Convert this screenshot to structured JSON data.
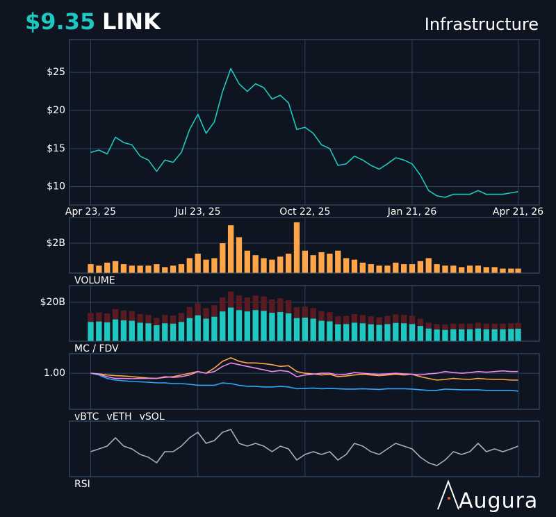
{
  "header": {
    "price": "$9.35",
    "symbol": "LINK",
    "sector": "Infrastructure"
  },
  "brand": "Augura",
  "chart_data": [
    {
      "type": "line",
      "x": [
        "2025-04-23",
        "2025-04-30",
        "2025-05-07",
        "2025-05-14",
        "2025-05-21",
        "2025-05-28",
        "2025-06-04",
        "2025-06-11",
        "2025-06-18",
        "2025-06-25",
        "2025-07-02",
        "2025-07-09",
        "2025-07-16",
        "2025-07-23",
        "2025-07-30",
        "2025-08-06",
        "2025-08-13",
        "2025-08-20",
        "2025-08-27",
        "2025-09-03",
        "2025-09-10",
        "2025-09-17",
        "2025-09-24",
        "2025-10-01",
        "2025-10-08",
        "2025-10-15",
        "2025-10-22",
        "2025-10-29",
        "2025-11-05",
        "2025-11-12",
        "2025-11-19",
        "2025-11-26",
        "2025-12-03",
        "2025-12-10",
        "2025-12-17",
        "2025-12-24",
        "2025-12-31",
        "2026-01-07",
        "2026-01-14",
        "2026-01-21",
        "2026-01-28",
        "2026-02-04",
        "2026-02-11",
        "2026-02-18",
        "2026-02-25",
        "2026-03-04",
        "2026-03-11",
        "2026-03-18",
        "2026-03-25",
        "2026-04-01",
        "2026-04-08",
        "2026-04-15",
        "2026-04-21"
      ],
      "series": [
        {
          "color": "#1ec8c0",
          "values": [
            14.5,
            14.8,
            14.3,
            16.5,
            15.8,
            15.5,
            14.0,
            13.5,
            12.0,
            13.5,
            13.2,
            14.5,
            17.5,
            19.5,
            17.0,
            18.5,
            22.5,
            25.5,
            23.5,
            22.5,
            23.5,
            23.0,
            21.5,
            22.0,
            21.0,
            17.5,
            17.8,
            17.0,
            15.5,
            15.0,
            12.8,
            13.0,
            14.0,
            13.5,
            12.8,
            12.3,
            13.0,
            13.8,
            13.5,
            13.0,
            11.5,
            9.5,
            8.8,
            8.6,
            9.0,
            9.0,
            9.0,
            9.5,
            9.0,
            9.0,
            9.0,
            9.2,
            9.35
          ]
        }
      ],
      "xlim": [
        "2025-04-05",
        "2026-05-09"
      ],
      "xticks": [
        {
          "value": "2025-04-23",
          "label": "Apr 23, 25"
        },
        {
          "value": "2025-07-23",
          "label": "Jul 23, 25"
        },
        {
          "value": "2025-10-22",
          "label": "Oct 22, 25"
        },
        {
          "value": "2026-01-21",
          "label": "Jan 21, 26"
        },
        {
          "value": "2026-04-21",
          "label": "Apr 21, 26"
        }
      ],
      "ylim": [
        7.6,
        29.3
      ],
      "yticks": [
        {
          "value": 10,
          "label": "$10"
        },
        {
          "value": 15,
          "label": "$15"
        },
        {
          "value": 20,
          "label": "$20"
        },
        {
          "value": 25,
          "label": "$25"
        }
      ],
      "grid": true
    },
    {
      "type": "bar",
      "label": "VOLUME",
      "color": "#ffa54a",
      "values": [
        0.6,
        0.5,
        0.7,
        0.8,
        0.6,
        0.5,
        0.5,
        0.5,
        0.6,
        0.4,
        0.5,
        0.6,
        1.0,
        1.3,
        0.9,
        1.0,
        2.0,
        3.2,
        2.4,
        1.5,
        1.2,
        1.0,
        0.9,
        1.1,
        1.3,
        3.4,
        1.5,
        1.2,
        1.4,
        1.3,
        1.5,
        1.0,
        0.9,
        0.7,
        0.6,
        0.5,
        0.5,
        0.7,
        0.6,
        0.6,
        0.8,
        1.0,
        0.6,
        0.5,
        0.5,
        0.4,
        0.5,
        0.5,
        0.4,
        0.4,
        0.3,
        0.3,
        0.3
      ],
      "ylim": [
        0,
        3.72
      ],
      "yticks": [
        {
          "value": 2,
          "label": "$2B"
        }
      ],
      "grid": true
    },
    {
      "type": "bar",
      "label": "MC / FDV",
      "series": [
        {
          "color": "#5a1a22",
          "values": [
            14.5,
            14.8,
            14.3,
            16.5,
            15.8,
            15.5,
            14.0,
            13.5,
            12.0,
            13.5,
            13.2,
            14.5,
            17.5,
            19.5,
            17.0,
            18.5,
            22.5,
            25.5,
            23.5,
            22.5,
            23.5,
            23.0,
            21.5,
            22.0,
            21.0,
            17.5,
            17.8,
            17.0,
            15.5,
            15.0,
            12.8,
            13.0,
            14.0,
            13.5,
            12.8,
            12.3,
            13.0,
            13.8,
            13.5,
            13.0,
            11.5,
            9.5,
            8.8,
            8.6,
            9.0,
            9.0,
            9.0,
            9.5,
            9.0,
            9.0,
            9.0,
            9.2,
            9.35
          ]
        },
        {
          "color": "#1ec8c0",
          "values": [
            9.9,
            10.1,
            9.7,
            11.2,
            10.7,
            10.5,
            9.5,
            9.2,
            8.2,
            9.2,
            9.0,
            9.9,
            11.9,
            13.3,
            11.6,
            12.6,
            15.3,
            17.3,
            16.0,
            15.3,
            16.0,
            15.6,
            14.6,
            15.0,
            14.3,
            11.9,
            12.1,
            11.6,
            10.5,
            10.2,
            8.7,
            8.8,
            9.5,
            9.2,
            8.7,
            8.4,
            8.8,
            9.4,
            9.2,
            8.8,
            7.8,
            6.5,
            6.0,
            5.8,
            6.1,
            6.1,
            6.1,
            6.5,
            6.1,
            6.1,
            6.1,
            6.3,
            6.4
          ]
        }
      ],
      "ylim": [
        0,
        28.6
      ],
      "yticks": [
        {
          "value": 20,
          "label": "$20B"
        }
      ],
      "grid": true
    },
    {
      "type": "line",
      "series": [
        {
          "name": "vBTC",
          "color": "#ffa54a",
          "values": [
            1.0,
            0.98,
            0.95,
            0.93,
            0.92,
            0.9,
            0.88,
            0.86,
            0.85,
            0.88,
            0.9,
            0.95,
            1.0,
            1.05,
            1.0,
            1.15,
            1.35,
            1.45,
            1.35,
            1.3,
            1.3,
            1.28,
            1.25,
            1.2,
            1.22,
            1.05,
            1.0,
            0.98,
            0.95,
            0.97,
            0.9,
            0.92,
            0.95,
            0.97,
            0.95,
            0.93,
            0.95,
            0.97,
            0.95,
            0.97,
            0.9,
            0.85,
            0.8,
            0.82,
            0.85,
            0.83,
            0.82,
            0.85,
            0.83,
            0.82,
            0.82,
            0.8,
            0.8
          ]
        },
        {
          "name": "vETH",
          "color": "#2ea8ff",
          "values": [
            1.0,
            0.95,
            0.85,
            0.8,
            0.78,
            0.76,
            0.75,
            0.74,
            0.72,
            0.72,
            0.7,
            0.7,
            0.68,
            0.65,
            0.65,
            0.65,
            0.72,
            0.7,
            0.65,
            0.62,
            0.62,
            0.6,
            0.6,
            0.62,
            0.6,
            0.55,
            0.56,
            0.57,
            0.55,
            0.56,
            0.55,
            0.54,
            0.54,
            0.55,
            0.54,
            0.53,
            0.55,
            0.55,
            0.55,
            0.54,
            0.52,
            0.5,
            0.5,
            0.54,
            0.53,
            0.52,
            0.52,
            0.52,
            0.5,
            0.5,
            0.5,
            0.5,
            0.48
          ]
        },
        {
          "name": "vSOL",
          "color": "#ee88ee",
          "values": [
            1.0,
            0.97,
            0.9,
            0.85,
            0.85,
            0.84,
            0.85,
            0.85,
            0.85,
            0.9,
            0.88,
            0.9,
            0.95,
            1.05,
            1.0,
            1.05,
            1.2,
            1.3,
            1.25,
            1.2,
            1.15,
            1.1,
            1.05,
            1.08,
            1.05,
            0.9,
            0.95,
            0.97,
            1.0,
            1.0,
            0.95,
            0.97,
            1.02,
            1.0,
            0.98,
            0.97,
            0.98,
            1.0,
            0.98,
            0.97,
            0.95,
            0.98,
            1.0,
            1.05,
            1.02,
            1.0,
            1.02,
            1.05,
            1.03,
            1.05,
            1.07,
            1.05,
            1.05
          ]
        }
      ],
      "ylim": [
        -0.05,
        1.57
      ],
      "yticks": [
        {
          "value": 1,
          "label": "1.00"
        }
      ],
      "grid": true
    },
    {
      "type": "line",
      "label": "RSI",
      "series": [
        {
          "color": "#a9b0b8",
          "values": [
            45,
            50,
            55,
            70,
            55,
            50,
            40,
            35,
            25,
            45,
            45,
            55,
            70,
            80,
            60,
            65,
            80,
            85,
            60,
            55,
            60,
            55,
            45,
            55,
            50,
            30,
            40,
            45,
            40,
            45,
            30,
            40,
            60,
            55,
            45,
            40,
            50,
            60,
            55,
            50,
            35,
            25,
            20,
            30,
            45,
            40,
            45,
            60,
            45,
            50,
            45,
            50,
            55
          ]
        }
      ],
      "ylim": [
        0,
        100
      ],
      "grid": true
    }
  ]
}
